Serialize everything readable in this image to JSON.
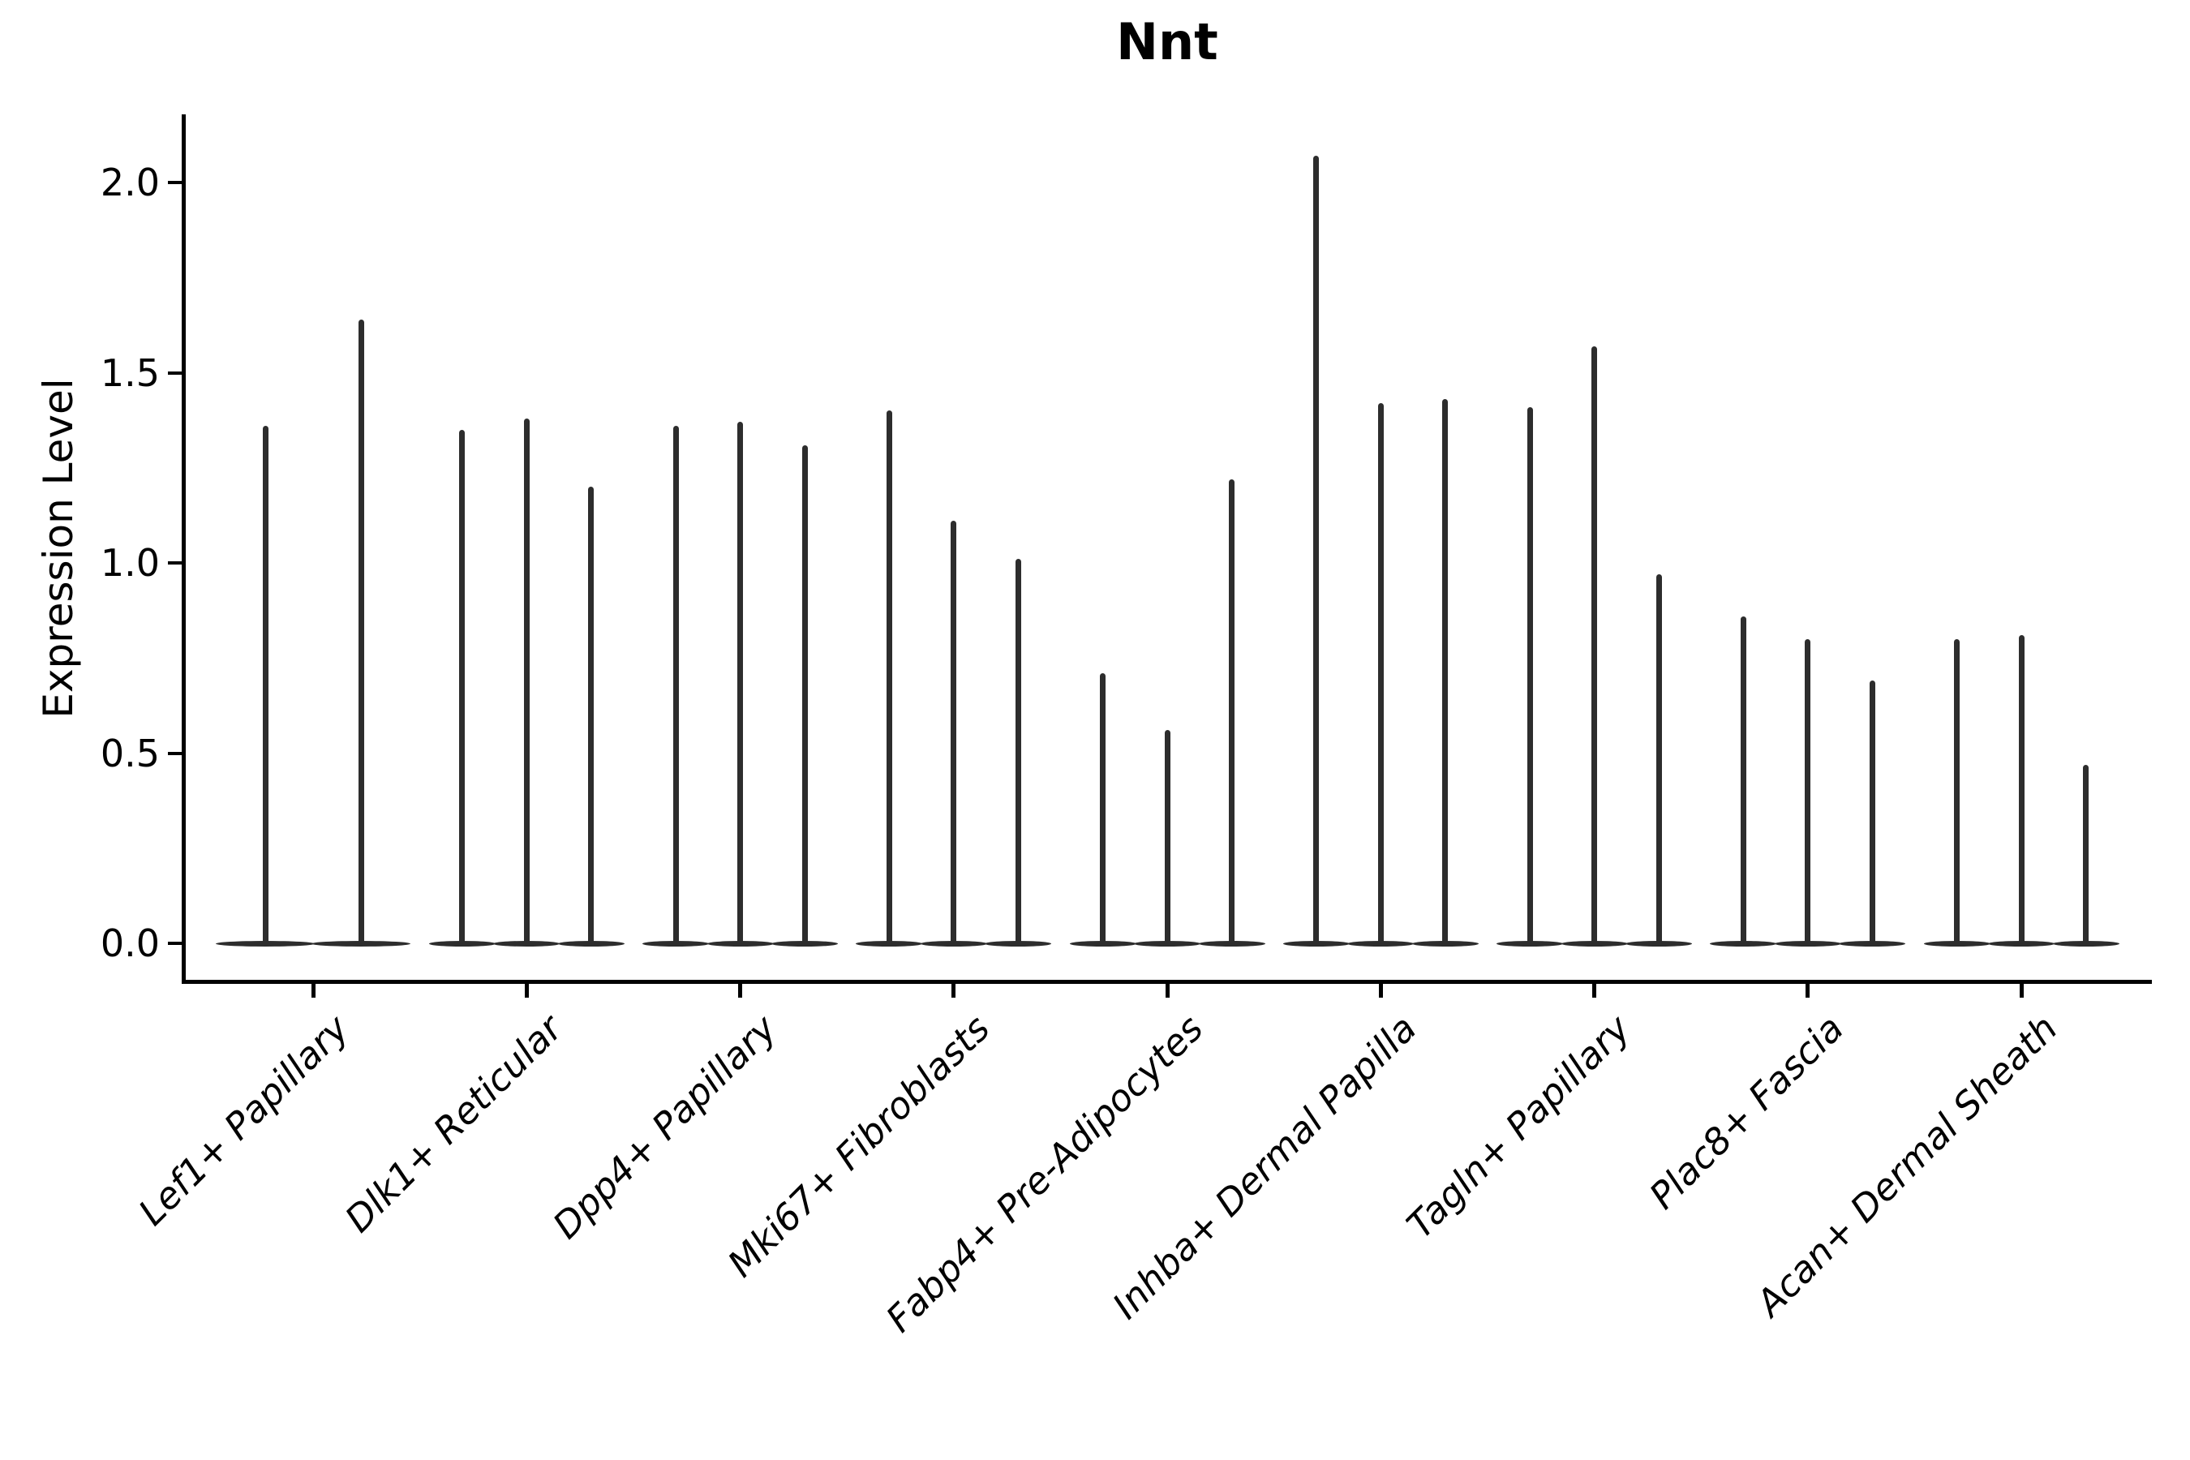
{
  "chart_data": {
    "type": "violin",
    "title": "Nnt",
    "xlabel": "",
    "ylabel": "Expression Level",
    "ytick_labels": [
      "0.0",
      "0.5",
      "1.0",
      "1.5",
      "2.0"
    ],
    "ytick_values": [
      0.0,
      0.5,
      1.0,
      1.5,
      2.0
    ],
    "ylim": [
      -0.1,
      2.18
    ],
    "grid": false,
    "legend_position": "none",
    "violin_style": "needle-thin violins; wide flat density mass at 0 with a thin spike rising to each distribution maximum",
    "violin_color": "#2d2d2d",
    "categories": [
      "Lef1+ Papillary",
      "Dlk1+ Reticular",
      "Dpp4+ Papillary",
      "Mki67+ Fibroblasts",
      "Fabp4+ Pre-Adipocytes",
      "Inhba+ Dermal Papilla",
      "Tagln+ Papillary",
      "Plac8+ Fascia",
      "Acan+ Dermal Sheath"
    ],
    "groups": [
      {
        "category": "Lef1+ Papillary",
        "violin_maxima": [
          1.36,
          1.64
        ],
        "violin_minimum": 0.0
      },
      {
        "category": "Dlk1+ Reticular",
        "violin_maxima": [
          1.35,
          1.38,
          1.2
        ],
        "violin_minimum": 0.0
      },
      {
        "category": "Dpp4+ Papillary",
        "violin_maxima": [
          1.36,
          1.37,
          1.31
        ],
        "violin_minimum": 0.0
      },
      {
        "category": "Mki67+ Fibroblasts",
        "violin_maxima": [
          1.4,
          1.11,
          1.01
        ],
        "violin_minimum": 0.0
      },
      {
        "category": "Fabp4+ Pre-Adipocytes",
        "violin_maxima": [
          0.71,
          0.56,
          1.22
        ],
        "violin_minimum": 0.0
      },
      {
        "category": "Inhba+ Dermal Papilla",
        "violin_maxima": [
          2.07,
          1.42,
          1.43
        ],
        "violin_minimum": 0.0
      },
      {
        "category": "Tagln+ Papillary",
        "violin_maxima": [
          1.41,
          1.57,
          0.97
        ],
        "violin_minimum": 0.0
      },
      {
        "category": "Plac8+ Fascia",
        "violin_maxima": [
          0.86,
          0.8,
          0.69
        ],
        "violin_minimum": 0.0
      },
      {
        "category": "Acan+ Dermal Sheath",
        "violin_maxima": [
          0.8,
          0.81,
          0.47
        ],
        "violin_minimum": 0.0
      }
    ]
  }
}
